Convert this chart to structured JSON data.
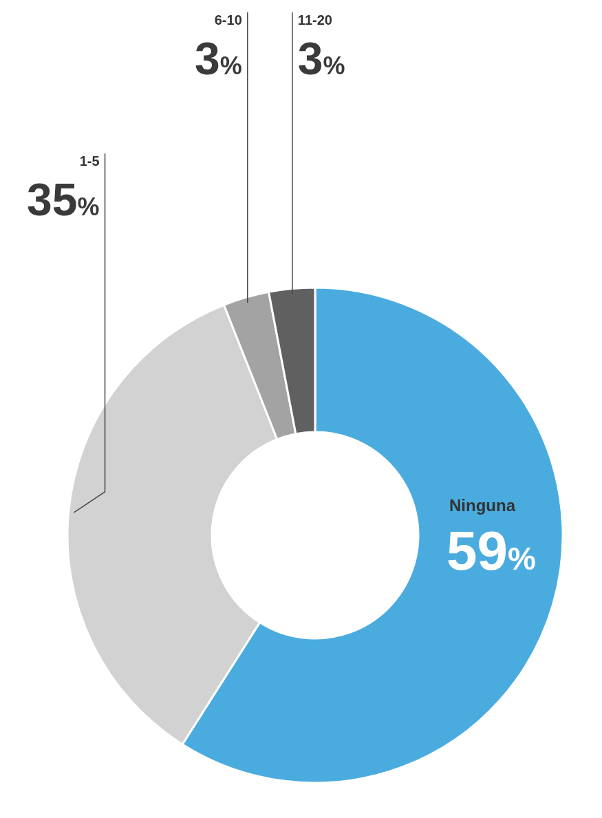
{
  "chart_data": {
    "type": "donut",
    "categories": [
      "Ninguna",
      "1-5",
      "6-10",
      "11-20"
    ],
    "values": [
      59,
      35,
      3,
      3
    ],
    "colors": [
      "#4aabdf",
      "#d2d2d2",
      "#a3a3a3",
      "#606060"
    ],
    "value_labels": [
      "59%",
      "35%",
      "3%",
      "3%"
    ]
  }
}
